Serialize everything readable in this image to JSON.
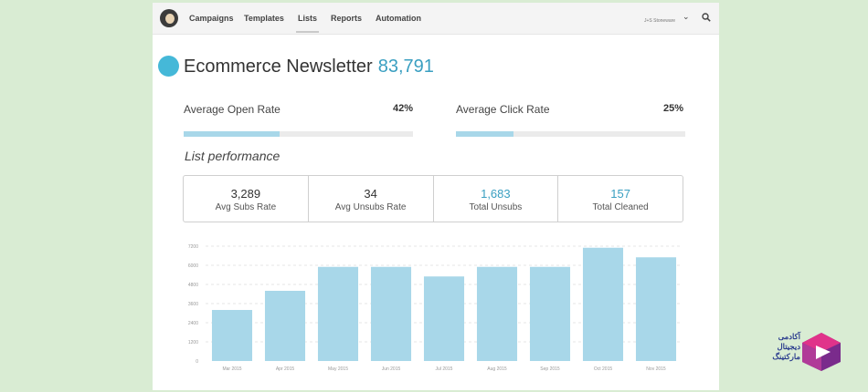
{
  "nav": {
    "items": [
      "Campaigns",
      "Templates",
      "Lists",
      "Reports",
      "Automation"
    ],
    "active": "Lists",
    "account": "J+S Stoneware"
  },
  "list": {
    "name": "Ecommerce Newsletter",
    "subscribers": "83,791"
  },
  "rates": {
    "open_label": "Average Open Rate",
    "open_value": "42%",
    "open_fraction": 0.42,
    "click_label": "Average Click Rate",
    "click_value": "25%",
    "click_fraction": 0.25
  },
  "section_title": "List performance",
  "stats": [
    {
      "value": "3,289",
      "label": "Avg Subs Rate"
    },
    {
      "value": "34",
      "label": "Avg Unsubs Rate"
    },
    {
      "value": "1,683",
      "label": "Total Unsubs"
    },
    {
      "value": "157",
      "label": "Total Cleaned"
    }
  ],
  "colors": {
    "accent": "#3a9fc1",
    "bar": "#a8d7e9",
    "badge": "#45b8d8",
    "background": "#d9ecd3"
  },
  "chart_data": {
    "type": "bar",
    "categories": [
      "Mar 2015",
      "Apr 2015",
      "May 2015",
      "Jun 2015",
      "Jul 2015",
      "Aug 2015",
      "Sep 2015",
      "Oct 2015",
      "Nov 2015"
    ],
    "values": [
      3200,
      4400,
      5900,
      5900,
      5300,
      5900,
      5900,
      7100,
      6500
    ],
    "yticks": [
      0,
      1200,
      2400,
      3600,
      4800,
      6000,
      7200
    ],
    "ylim": [
      0,
      7200
    ],
    "grid": true
  },
  "brand": {
    "lines": [
      "آکادمی",
      "دیجیتال",
      "مارکتینگ"
    ]
  }
}
